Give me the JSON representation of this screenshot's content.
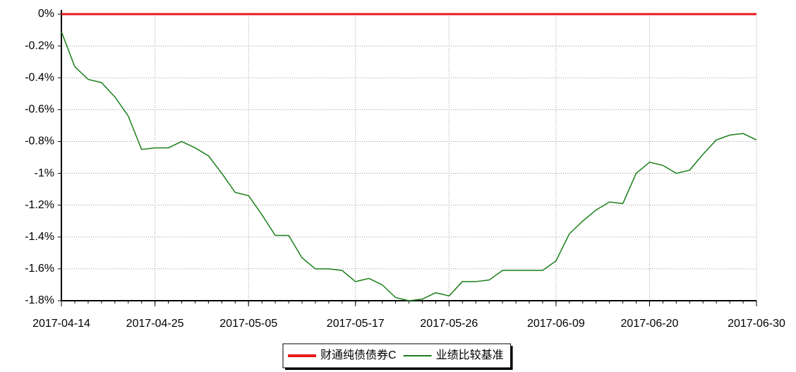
{
  "chart_data": {
    "type": "line",
    "categories": [
      "2017-04-14",
      null,
      null,
      null,
      null,
      null,
      null,
      "2017-04-25",
      null,
      null,
      null,
      null,
      null,
      null,
      "2017-05-05",
      null,
      null,
      null,
      null,
      null,
      null,
      null,
      "2017-05-17",
      null,
      null,
      null,
      null,
      null,
      null,
      "2017-05-26",
      null,
      null,
      null,
      null,
      null,
      null,
      null,
      "2017-06-09",
      null,
      null,
      null,
      null,
      null,
      null,
      "2017-06-20",
      null,
      null,
      null,
      null,
      null,
      null,
      null,
      "2017-06-30"
    ],
    "series": [
      {
        "name": "财通纯债债券C",
        "color": "#e8191c",
        "values": [
          0,
          0,
          0,
          0,
          0,
          0,
          0,
          0,
          0,
          0,
          0,
          0,
          0,
          0,
          0,
          0,
          0,
          0,
          0,
          0,
          0,
          0,
          0,
          0,
          0,
          0,
          0,
          0,
          0,
          0,
          0,
          0,
          0,
          0,
          0,
          0,
          0,
          0,
          0,
          0,
          0,
          0,
          0,
          0,
          0,
          0,
          0,
          0,
          0,
          0,
          0,
          0,
          0
        ]
      },
      {
        "name": "业绩比较基准",
        "color": "#1a7f1a",
        "values": [
          -0.11,
          -0.33,
          -0.41,
          -0.43,
          -0.52,
          -0.64,
          -0.85,
          -0.84,
          -0.84,
          -0.8,
          -0.84,
          -0.89,
          -1.0,
          -1.12,
          -1.14,
          -1.26,
          -1.39,
          -1.39,
          -1.53,
          -1.6,
          -1.6,
          -1.61,
          -1.68,
          -1.66,
          -1.7,
          -1.78,
          -1.8,
          -1.79,
          -1.75,
          -1.77,
          -1.68,
          -1.68,
          -1.67,
          -1.61,
          -1.61,
          -1.61,
          -1.61,
          -1.55,
          -1.38,
          -1.3,
          -1.23,
          -1.18,
          -1.19,
          -1.0,
          -0.93,
          -0.95,
          -1.0,
          -0.98,
          -0.88,
          -0.79,
          -0.76,
          -0.75,
          -0.79
        ]
      }
    ],
    "ylim": [
      -1.8,
      0
    ],
    "yticks": [
      {
        "value": 0,
        "label": "0%"
      },
      {
        "value": -0.2,
        "label": "-0.2%"
      },
      {
        "value": -0.4,
        "label": "-0.4%"
      },
      {
        "value": -0.6,
        "label": "-0.6%"
      },
      {
        "value": -0.8,
        "label": "-0.8%"
      },
      {
        "value": -1,
        "label": "-1%"
      },
      {
        "value": -1.2,
        "label": "-1.2%"
      },
      {
        "value": -1.4,
        "label": "-1.4%"
      },
      {
        "value": -1.6,
        "label": "-1.6%"
      },
      {
        "value": -1.8,
        "label": "-1.8%"
      }
    ],
    "grid": true,
    "legend": "bottom"
  }
}
